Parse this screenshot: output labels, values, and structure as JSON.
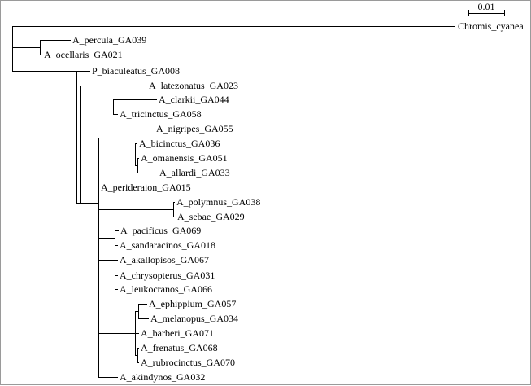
{
  "scale_bar": {
    "label": "0.01"
  },
  "tips": {
    "chromis_cyanea": "Chromis_cyanea",
    "a_percula": "A_percula_GA039",
    "a_ocellaris": "A_ocellaris_GA021",
    "p_biaculeatus": "P_biaculeatus_GA008",
    "a_latezonatus": "A_latezonatus_GA023",
    "a_clarkii": "A_clarkii_GA044",
    "a_tricinctus": "A_tricinctus_GA058",
    "a_nigripes": "A_nigripes_GA055",
    "a_bicinctus": "A_bicinctus_GA036",
    "a_omanensis": "A_omanensis_GA051",
    "a_allardi": "A_allardi_GA033",
    "a_perideraion": "A_perideraion_GA015",
    "a_polymnus": "A_polymnus_GA038",
    "a_sebae": "A_sebae_GA029",
    "a_pacificus": "A_pacificus_GA069",
    "a_sandaracinos": "A_sandaracinos_GA018",
    "a_akallopisos": "A_akallopisos_GA067",
    "a_chrysopterus": "A_chrysopterus_GA031",
    "a_leukocranos": "A_leukocranos_GA066",
    "a_ephippium": "A_ephippium_GA057",
    "a_melanopus": "A_melanopus_GA034",
    "a_barberi": "A_barberi_GA071",
    "a_frenatus": "A_frenatus_GA068",
    "a_rubrocinctus": "A_rubrocinctus_GA070",
    "a_akindynos": "A_akindynos_GA032"
  }
}
